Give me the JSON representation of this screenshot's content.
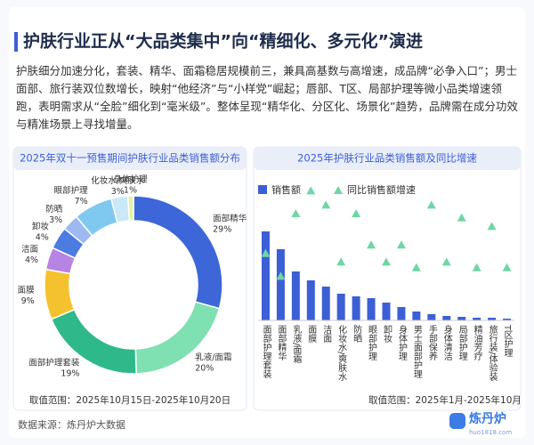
{
  "header": {
    "title": "护肤行业正从“大品类集中”向“精细化、多元化”演进",
    "description": "护肤细分加速分化，套装、精华、面霜稳居规模前三，兼具高基数与高增速，成品牌“必争入口”；男士面部、旅行装双位数增长，映射“他经济”与“小样党”崛起；唇部、T区、局部护理等微小品类增速领跑，表明需求从“全脸”细化到“毫米级”。整体呈现“精华化、分区化、场景化”趋势，品牌需在成分功效与精准场景上寻找增量。"
  },
  "chart_data": [
    {
      "type": "donut",
      "title": "2025年双十一预售期间护肤行业品类销售额分布",
      "categories": [
        "面部精华",
        "乳液/面霜",
        "面部护理套装",
        "面膜",
        "洁面",
        "卸妆",
        "防晒",
        "眼部护理",
        "化妆水/爽肤水",
        "身体护理"
      ],
      "values": [
        29,
        20,
        19,
        9,
        4,
        4,
        3,
        7,
        3,
        1
      ],
      "value_labels": [
        "29%",
        "20%",
        "19%",
        "9%",
        "4%",
        "4%",
        "3%",
        "7%",
        "3%",
        "1%"
      ],
      "colors": [
        "#3d66d9",
        "#7fe0b2",
        "#2fb98b",
        "#f5c22f",
        "#b884e3",
        "#4c7ce2",
        "#9db9f2",
        "#7fc9f1",
        "#c9e8f8",
        "#e2f1a3"
      ],
      "note": "取值范围：2025年10月15日-2025年10月20日"
    },
    {
      "type": "bar_triangle",
      "title": "2025年护肤行业品类销售额及同比增速",
      "categories": [
        "面部护理套装",
        "面部精华",
        "乳液/面霜",
        "面膜",
        "洁面",
        "化妆水/爽肤水",
        "防晒",
        "眼部护理",
        "卸妆",
        "身体护理",
        "男士面部护理",
        "手部保养",
        "身体清洁",
        "局部护理",
        "精油芳疗",
        "旅行装/体验装",
        "T区护理"
      ],
      "series": [
        {
          "name": "销售额",
          "color": "#3d5fd6",
          "values": [
            100,
            80,
            55,
            45,
            38,
            30,
            27,
            25,
            20,
            15,
            10,
            7,
            5,
            4,
            3,
            3,
            2
          ]
        },
        {
          "name": "同比销售额增速",
          "color": "#6ed6a6",
          "axis": "y2",
          "values": [
            47,
            31,
            75,
            91,
            81,
            41,
            75,
            53,
            41,
            53,
            37,
            81,
            41,
            72,
            37,
            66,
            37
          ]
        }
      ],
      "ylim": [
        0,
        160
      ],
      "y2lim": [
        0,
        100
      ],
      "note": "取值范围：2025年1月-2025年10月"
    }
  ],
  "footer": {
    "source": "数据来源：炼丹炉大数据",
    "logo": "炼丹炉",
    "logo_url": "huo1818.com"
  }
}
